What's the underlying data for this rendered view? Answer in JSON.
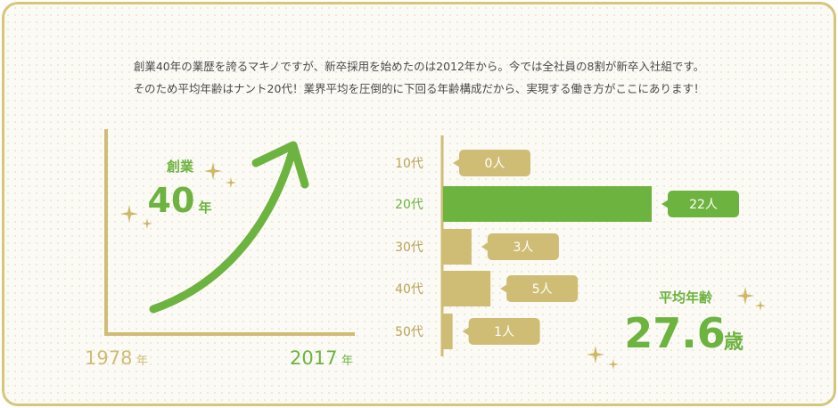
{
  "intro": {
    "line1": "創業40年の業歴を誇るマキノですが、新卒採用を始めたのは2012年から。今では全社員の8割が新卒入社組です。",
    "line2": "そのため平均年齢はナント20代！業界平均を圧倒的に下回る年齢構成だから、実現する働き方がここにあります！"
  },
  "colors": {
    "green": "#6db33f",
    "gold": "#cfbd75",
    "gold_text": "#b9a35a",
    "frame": "#d7c679"
  },
  "history": {
    "label": "創業",
    "years": "40",
    "years_unit": "年",
    "start_year": "1978",
    "start_unit": "年",
    "end_year": "2017",
    "end_unit": "年"
  },
  "average_age": {
    "label": "平均年齢",
    "value": "27.6",
    "unit": "歳"
  },
  "chart_data": [
    {
      "type": "bar",
      "categories": [
        "10代",
        "20代",
        "30代",
        "40代",
        "50代"
      ],
      "values": [
        0,
        22,
        3,
        5,
        1
      ],
      "value_labels": [
        "0人",
        "22人",
        "3人",
        "5人",
        "1人"
      ],
      "highlight_category": "20代",
      "orientation": "horizontal"
    }
  ]
}
